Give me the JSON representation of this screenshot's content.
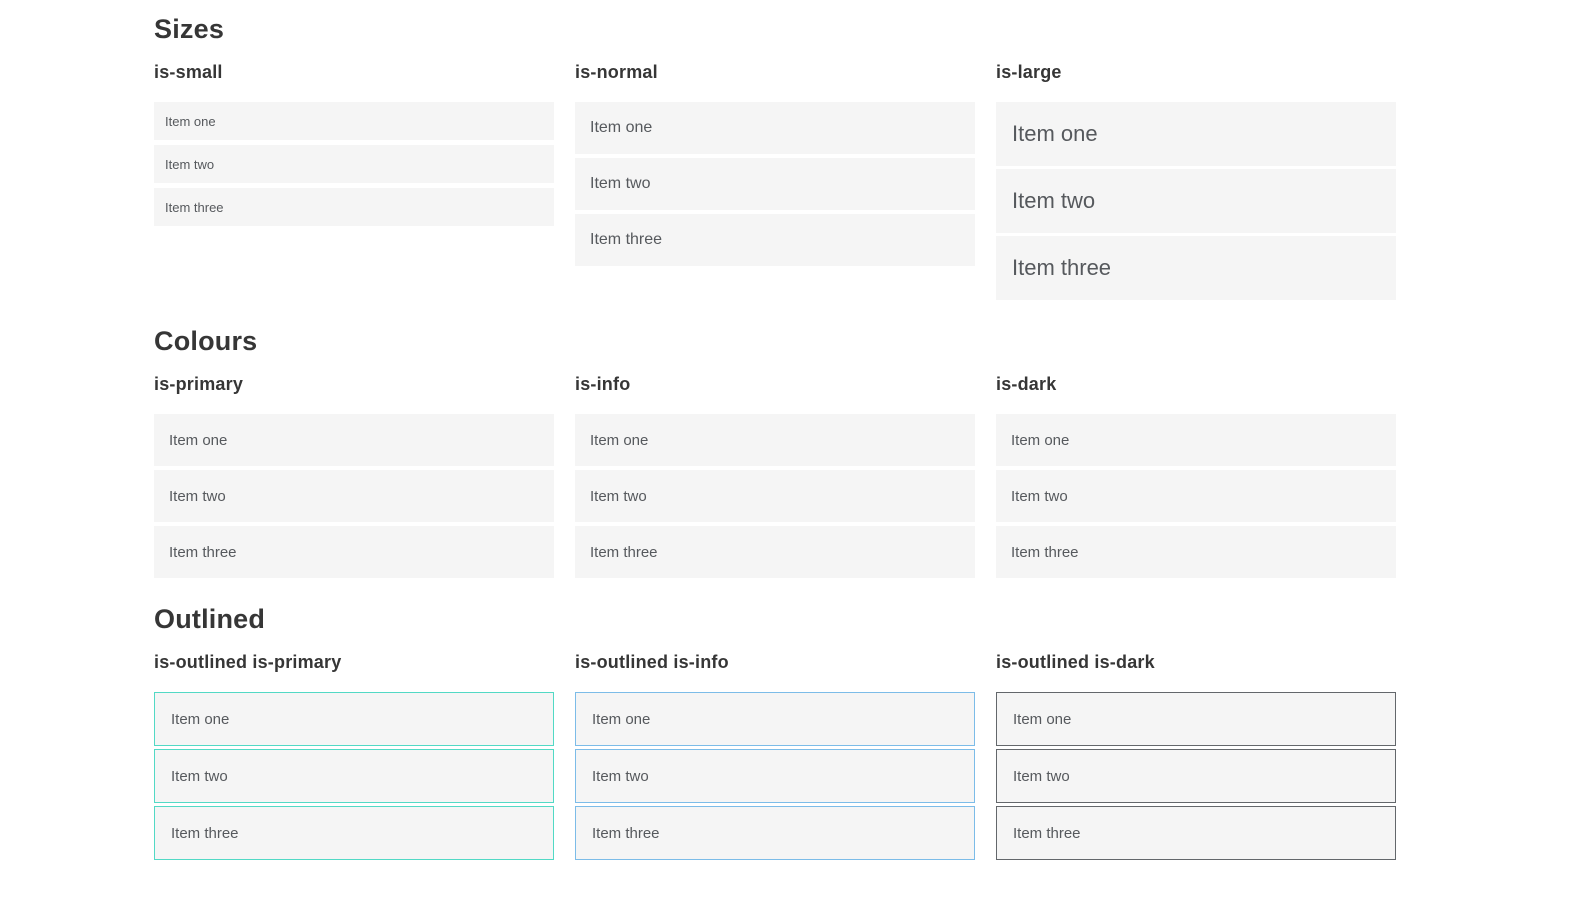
{
  "colors": {
    "primary": "#0BC5A9",
    "info": "#3A99D8",
    "dark": "#363636",
    "item_background": "#F5F5F5",
    "item_text": "#56595D",
    "heading_text": "#363636",
    "colored_item_text": "#FFFFFF",
    "outlined_primary_border": "#52D9C5",
    "outlined_primary_text": "#2FCFB2",
    "outlined_info_border": "#7CBCE8",
    "outlined_info_text": "#4D9FDC",
    "outlined_dark_border": "#63676B",
    "outlined_dark_text": "#3F444A"
  },
  "sections": [
    {
      "title": "Sizes",
      "groups": [
        {
          "label": "is-small",
          "variant": "size-small",
          "items": [
            "Item one",
            "Item two",
            "Item three"
          ]
        },
        {
          "label": "is-normal",
          "variant": "size-normal",
          "items": [
            "Item one",
            "Item two",
            "Item three"
          ]
        },
        {
          "label": "is-large",
          "variant": "size-large",
          "items": [
            "Item one",
            "Item two",
            "Item three"
          ]
        }
      ]
    },
    {
      "title": "Colours",
      "groups": [
        {
          "label": "is-primary",
          "variant": "color-primary",
          "items": [
            "Item one",
            "Item two",
            "Item three"
          ]
        },
        {
          "label": "is-info",
          "variant": "color-info",
          "items": [
            "Item one",
            "Item two",
            "Item three"
          ]
        },
        {
          "label": "is-dark",
          "variant": "color-dark",
          "items": [
            "Item one",
            "Item two",
            "Item three"
          ]
        }
      ]
    },
    {
      "title": "Outlined",
      "groups": [
        {
          "label": "is-outlined is-primary",
          "variant": "outlined-primary",
          "items": [
            "Item one",
            "Item two",
            "Item three"
          ]
        },
        {
          "label": "is-outlined is-info",
          "variant": "outlined-info",
          "items": [
            "Item one",
            "Item two",
            "Item three"
          ]
        },
        {
          "label": "is-outlined is-dark",
          "variant": "outlined-dark",
          "items": [
            "Item one",
            "Item two",
            "Item three"
          ]
        }
      ]
    }
  ]
}
